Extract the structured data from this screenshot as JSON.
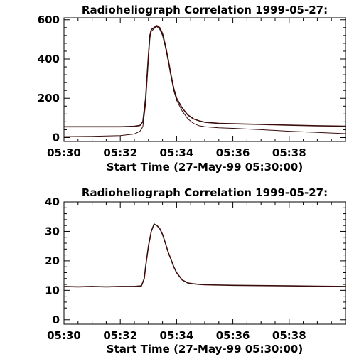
{
  "chart_data": [
    {
      "type": "line",
      "title": "Radioheliograph Correlation 1999-05-27:",
      "xlabel": "Start Time (27-May-99 05:30:00)",
      "ylabel": "",
      "x_tick_labels": [
        "05:30",
        "05:32",
        "05:34",
        "05:36",
        "05:38"
      ],
      "x_tick_minutes": [
        0,
        2,
        4,
        6,
        8
      ],
      "xlim_minutes": [
        0,
        10
      ],
      "y_ticks": [
        0,
        200,
        400,
        600
      ],
      "ylim": [
        -20,
        610
      ],
      "grid": false,
      "line_color": "#3a0c0c",
      "series": [
        {
          "x": [
            0,
            1,
            2,
            2.5,
            2.7,
            2.8,
            2.9,
            3.0,
            3.05,
            3.1,
            3.2,
            3.3,
            3.4,
            3.5,
            3.6,
            3.7,
            3.8,
            3.9,
            4.0,
            4.2,
            4.4,
            4.6,
            4.8,
            5.0,
            5.5,
            6.0,
            7.0,
            8.0,
            9.0,
            10.0
          ],
          "values": [
            55,
            55,
            55,
            57,
            62,
            80,
            200,
            420,
            520,
            550,
            560,
            570,
            560,
            530,
            470,
            400,
            320,
            250,
            200,
            150,
            115,
            95,
            85,
            78,
            72,
            70,
            67,
            63,
            60,
            58
          ]
        },
        {
          "x": [
            0,
            1,
            2,
            2.5,
            2.7,
            2.8,
            2.9,
            3.0,
            3.05,
            3.1,
            3.2,
            3.3,
            3.4,
            3.5,
            3.6,
            3.7,
            3.8,
            3.9,
            4.0,
            4.2,
            4.4,
            4.6,
            4.8,
            5.0,
            5.5,
            6.0,
            7.0,
            8.0,
            9.0,
            10.0
          ],
          "values": [
            5,
            6,
            10,
            18,
            32,
            55,
            170,
            400,
            505,
            540,
            555,
            565,
            552,
            520,
            460,
            390,
            310,
            240,
            190,
            135,
            95,
            72,
            60,
            55,
            50,
            47,
            40,
            32,
            26,
            20
          ]
        }
      ]
    },
    {
      "type": "line",
      "title": "Radioheliograph Correlation 1999-05-27:",
      "xlabel": "Start Time (27-May-99 05:30:00)",
      "ylabel": "",
      "x_tick_labels": [
        "05:30",
        "05:32",
        "05:34",
        "05:36",
        "05:38"
      ],
      "x_tick_minutes": [
        0,
        2,
        4,
        6,
        8
      ],
      "xlim_minutes": [
        0,
        10
      ],
      "y_ticks": [
        0,
        10,
        20,
        30,
        40
      ],
      "ylim": [
        -1.5,
        40
      ],
      "grid": false,
      "line_color": "#3a0c0c",
      "series": [
        {
          "x": [
            0,
            0.5,
            1.0,
            1.5,
            2.0,
            2.5,
            2.75,
            2.85,
            2.9,
            3.0,
            3.1,
            3.2,
            3.3,
            3.4,
            3.5,
            3.6,
            3.7,
            3.8,
            3.9,
            4.0,
            4.2,
            4.4,
            4.6,
            4.8,
            5.0,
            6.0,
            7.0,
            8.0,
            9.0,
            10.0
          ],
          "values": [
            11.3,
            11.2,
            11.3,
            11.2,
            11.3,
            11.3,
            11.5,
            14,
            18,
            25,
            30,
            32.5,
            32,
            31,
            29,
            26,
            23,
            20.5,
            18,
            16,
            13.5,
            12.5,
            12.2,
            12,
            11.9,
            11.7,
            11.6,
            11.5,
            11.4,
            11.3
          ]
        }
      ]
    }
  ]
}
